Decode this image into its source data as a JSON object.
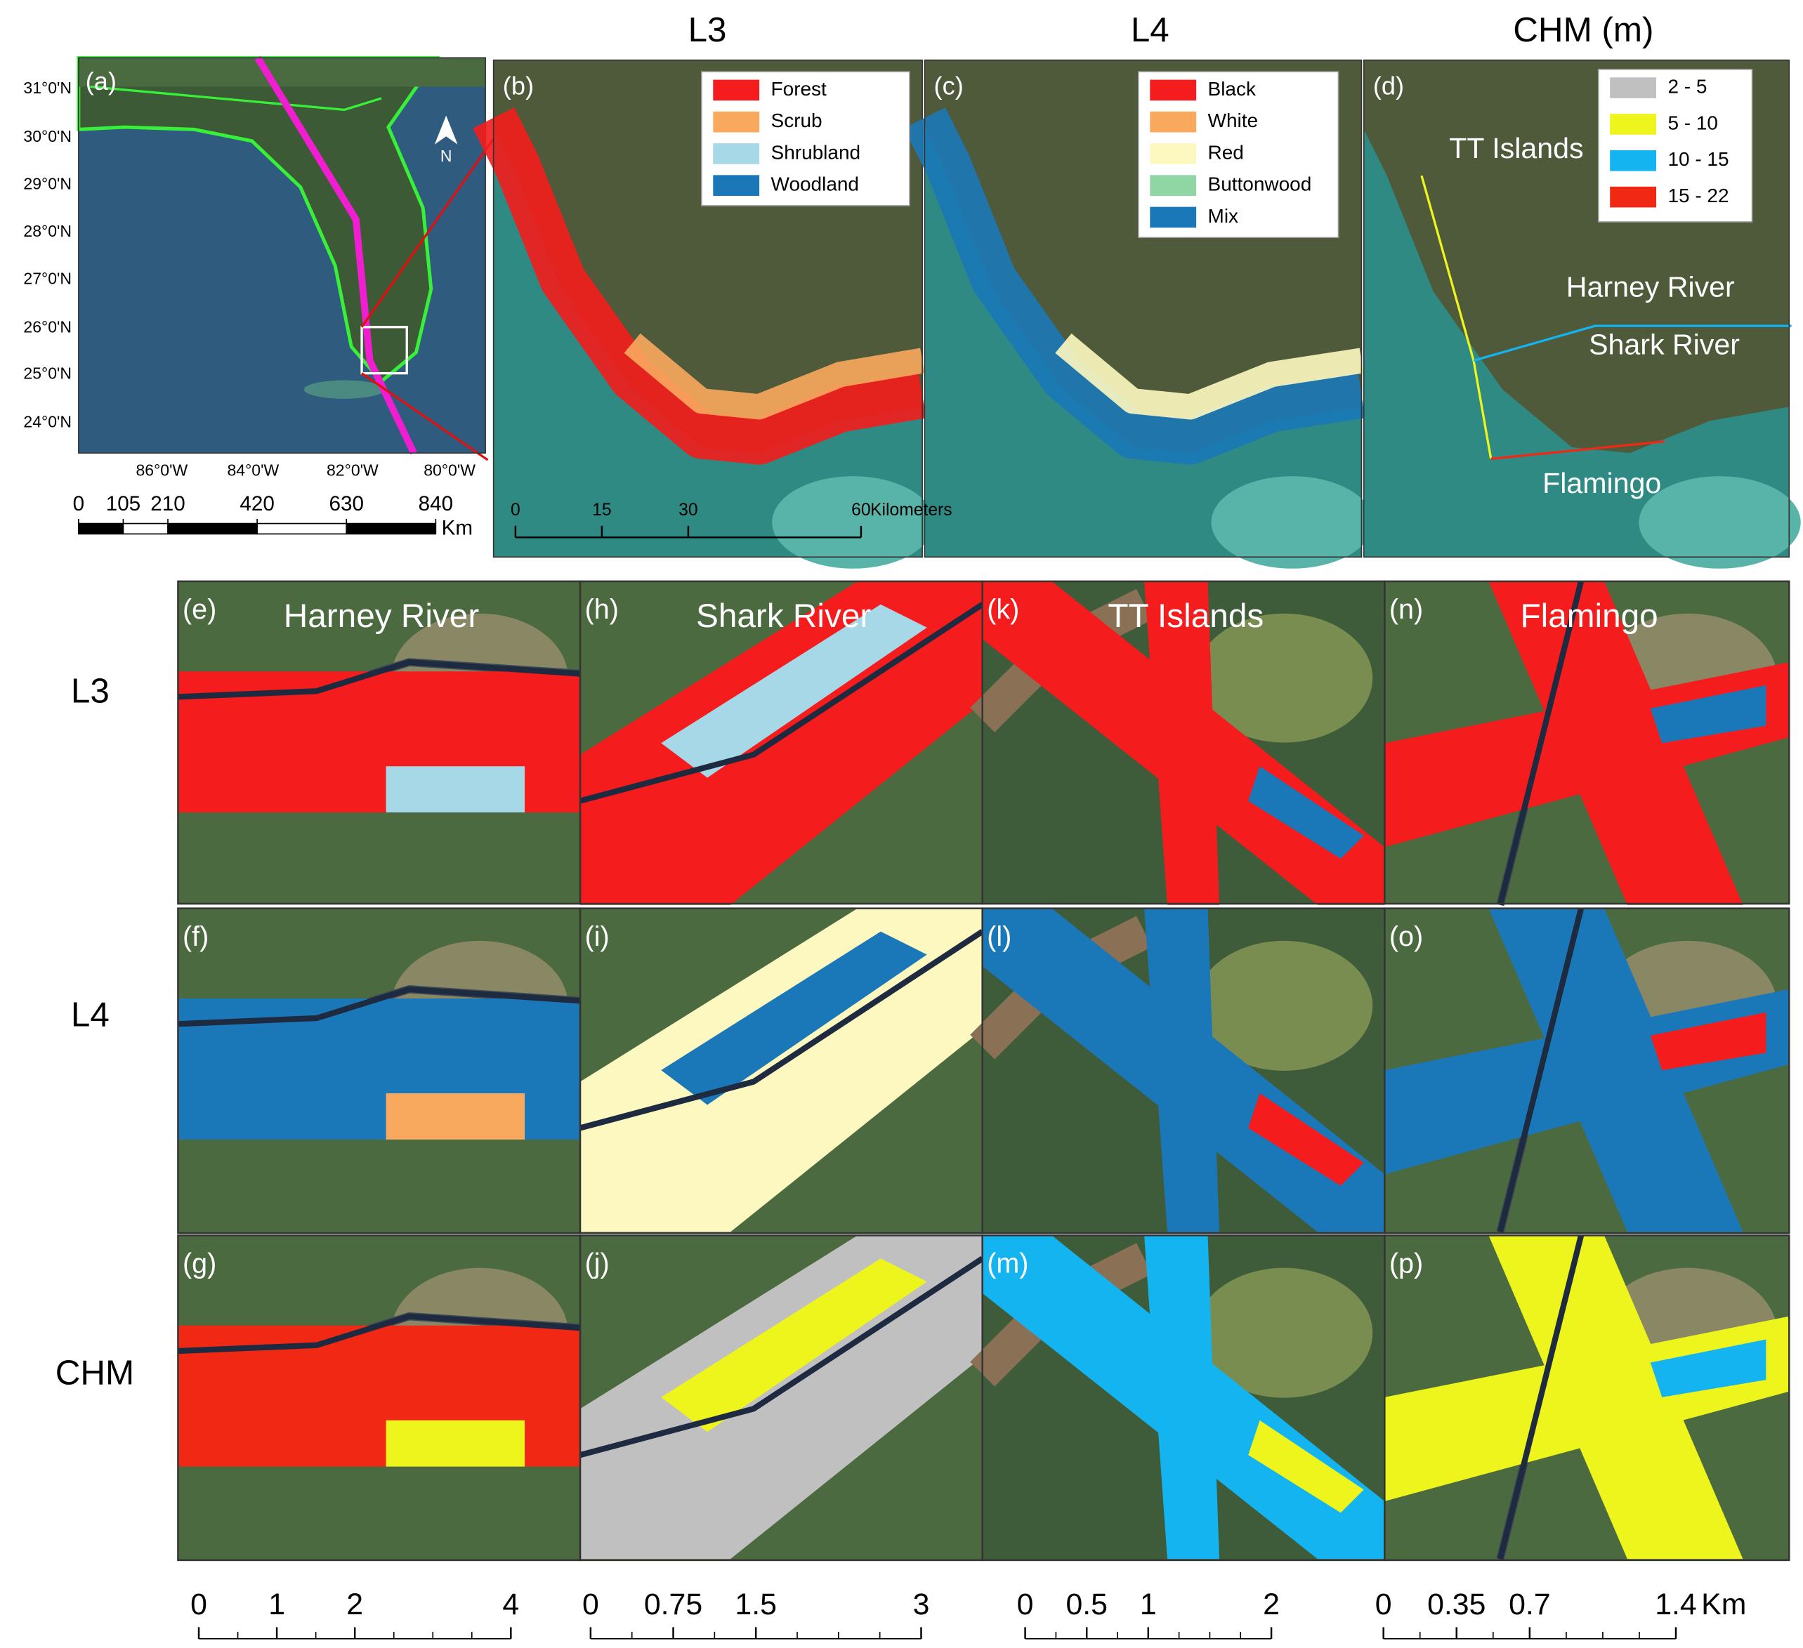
{
  "column_titles": [
    "L3",
    "L4",
    "CHM (m)"
  ],
  "overview": {
    "label": "(a)",
    "lat_labels": [
      "31°0'N",
      "30°0'N",
      "29°0'N",
      "28°0'N",
      "27°0'N",
      "26°0'N",
      "25°0'N",
      "24°0'N"
    ],
    "lon_labels": [
      "86°0'W",
      "84°0'W",
      "82°0'W",
      "80°0'W"
    ],
    "north": "N",
    "scale": {
      "ticks": [
        0,
        105,
        210,
        420,
        630,
        840
      ],
      "unit": "Km"
    }
  },
  "regional_panels": [
    {
      "label": "(b)",
      "legend": [
        {
          "name": "Forest",
          "color": "#f41c1c"
        },
        {
          "name": "Scrub",
          "color": "#f9a95e"
        },
        {
          "name": "Shrubland",
          "color": "#a6d8e8"
        },
        {
          "name": "Woodland",
          "color": "#1b78b8"
        }
      ],
      "scale": {
        "ticks": [
          0,
          15,
          30,
          60
        ],
        "unit": "Kilometers"
      }
    },
    {
      "label": "(c)",
      "legend": [
        {
          "name": "Black",
          "color": "#f41c1c"
        },
        {
          "name": "White",
          "color": "#f9a95e"
        },
        {
          "name": "Red",
          "color": "#fdf8c0"
        },
        {
          "name": "Buttonwood",
          "color": "#8fd6a4"
        },
        {
          "name": "Mix",
          "color": "#1b78b8"
        }
      ]
    },
    {
      "label": "(d)",
      "legend": [
        {
          "name": "2 - 5",
          "color": "#c0c0c0"
        },
        {
          "name": "5 - 10",
          "color": "#eef51c"
        },
        {
          "name": "10 - 15",
          "color": "#14b4f0"
        },
        {
          "name": "15 - 22",
          "color": "#f02814"
        }
      ],
      "sites": [
        "TT Islands",
        "Harney River",
        "Shark River",
        "Flamingo"
      ]
    }
  ],
  "row_labels": [
    "L3",
    "L4",
    "CHM"
  ],
  "site_columns": [
    {
      "title": "Harney River",
      "labels": [
        "(e)",
        "(f)",
        "(g)"
      ],
      "scale": {
        "ticks": [
          0,
          1,
          2,
          4
        ]
      }
    },
    {
      "title": "Shark River",
      "labels": [
        "(h)",
        "(i)",
        "(j)"
      ],
      "scale": {
        "ticks": [
          0,
          0.75,
          1.5,
          3
        ]
      }
    },
    {
      "title": "TT Islands",
      "labels": [
        "(k)",
        "(l)",
        "(m)"
      ],
      "scale": {
        "ticks": [
          0,
          0.5,
          1,
          2
        ]
      }
    },
    {
      "title": "Flamingo",
      "labels": [
        "(n)",
        "(o)",
        "(p)"
      ],
      "scale": {
        "ticks": [
          0,
          0.35,
          0.7,
          1.4
        ],
        "unit": "Km"
      }
    }
  ]
}
